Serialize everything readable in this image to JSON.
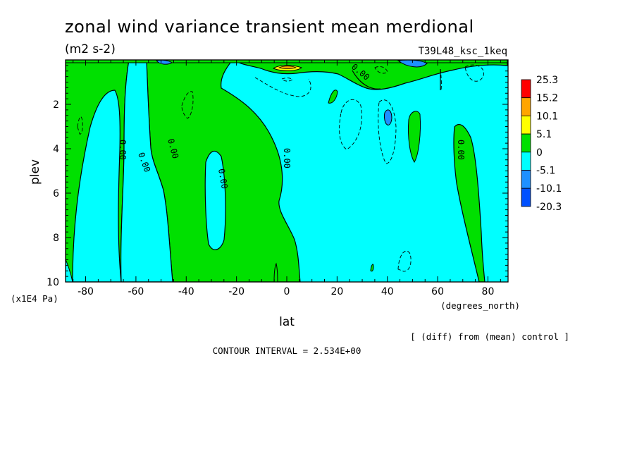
{
  "chart_data": {
    "type": "contour",
    "title": "zonal wind variance transient mean merdional",
    "units": "(m2 s-2)",
    "experiment": "T39L48_ksc_1keq",
    "xlabel": "lat",
    "xunits": "(degrees_north)",
    "ylabel": "plev",
    "yunits": "(x1E4 Pa)",
    "xlim": [
      -88,
      88
    ],
    "ylim": [
      10,
      0
    ],
    "xticks": [
      "-80",
      "-60",
      "-40",
      "-20",
      "0",
      "20",
      "40",
      "60",
      "80"
    ],
    "yticks": [
      "2",
      "4",
      "6",
      "8",
      "10"
    ],
    "xtick_values": [
      -80,
      -60,
      -40,
      -20,
      0,
      20,
      40,
      60,
      80
    ],
    "ytick_values": [
      2,
      4,
      6,
      8,
      10
    ],
    "contour_label": "0.00",
    "colorbar": {
      "levels": [
        "25.3",
        "15.2",
        "10.1",
        "5.1",
        "0",
        "-5.1",
        "-10.1",
        "-20.3"
      ],
      "colors": [
        "#ff0000",
        "#ffa500",
        "#ffff00",
        "#00e000",
        "#00ffff",
        "#1e90ff",
        "#0050ff"
      ]
    },
    "note": "[ (diff) from (mean) control ]",
    "contour_interval": "CONTOUR INTERVAL = 2.534E+00"
  }
}
